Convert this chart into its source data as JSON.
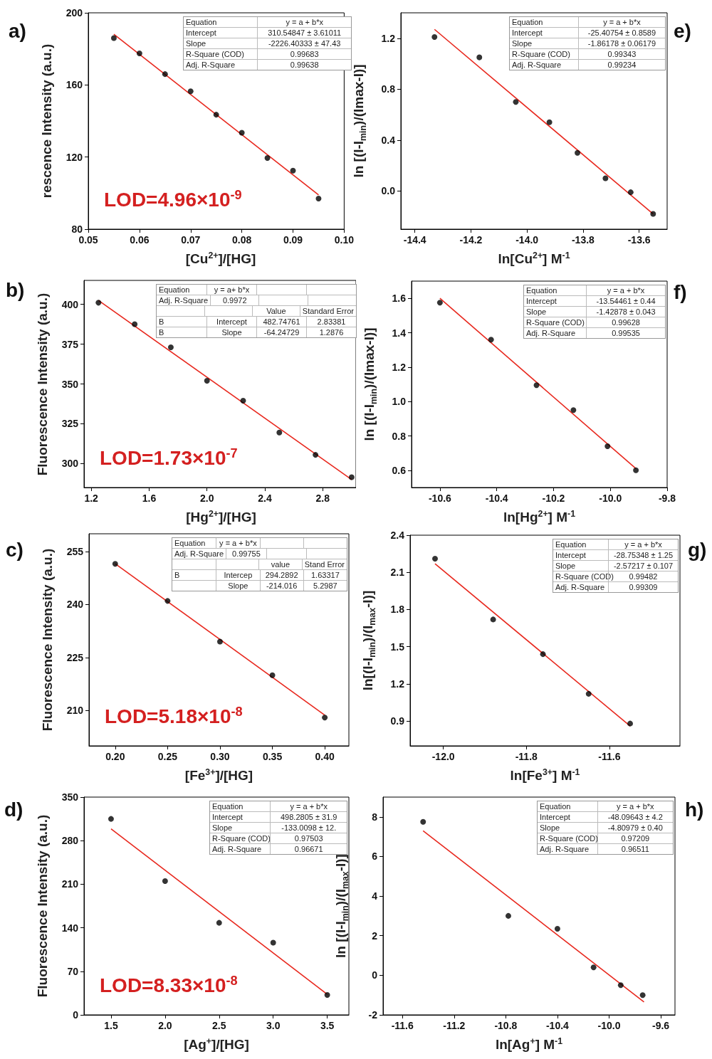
{
  "chart_data": [
    {
      "type": "scatter",
      "title": "a)",
      "subtitle": "LOD=4.96×10$^{-9}$",
      "xlabel": "[Cu$^{2+}$]/[HG]",
      "ylabel": "rescence Intensity (a.u.)",
      "xlim": [
        0.05,
        0.1
      ],
      "xticks": [
        0.05,
        0.06,
        0.07,
        0.08,
        0.09,
        {
          "value": 0.1,
          "label": "0.10"
        }
      ],
      "ylim": [
        80,
        200
      ],
      "yticks": [
        80,
        120,
        160,
        200
      ],
      "series": [
        {
          "type": "scatter",
          "marker": "circle",
          "color": "#000000",
          "x": [
            0.055,
            0.06,
            0.065,
            0.07,
            0.075,
            0.08,
            0.085,
            0.09,
            0.095
          ],
          "values": [
            186,
            177.5,
            166,
            156.5,
            143.5,
            133.5,
            119.5,
            112.5,
            97
          ]
        },
        {
          "type": "line",
          "marker": "none",
          "color": "#e8281e",
          "x": [
            0.055,
            0.095
          ],
          "values": [
            188.1,
            99.0
          ]
        }
      ],
      "annotations": [
        "Equation\ty = a + b*x",
        "Intercept\t310.54847 ± 3.61011",
        "Slope\t-2226.40333 ± 47.43",
        "R-Square (COD)\t0.99683",
        "Adj. R-Square\t0.99638"
      ]
    },
    {
      "type": "scatter",
      "title": "e)",
      "xlabel": "ln[Cu$^{2+}$] M$^{-1}$",
      "ylabel": "ln [(I-I$_{min}$)/(Imax-I)]",
      "xlim": [
        -14.45,
        -13.5
      ],
      "xticks": [
        -14.4,
        -14.2,
        {
          "value": -14,
          "label": "-14.0"
        },
        -13.8,
        -13.6
      ],
      "ylim": [
        -0.3,
        1.4
      ],
      "yticks": [
        {
          "value": 0,
          "label": "0.0"
        },
        0.4,
        0.8,
        1.2
      ],
      "series": [
        {
          "type": "scatter",
          "marker": "circle",
          "color": "#000000",
          "x": [
            -14.33,
            -14.17,
            -14.04,
            -13.92,
            -13.82,
            -13.72,
            -13.63,
            -13.55
          ],
          "values": [
            1.21,
            1.05,
            0.7,
            0.54,
            0.3,
            0.1,
            -0.01,
            -0.18
          ]
        },
        {
          "type": "line",
          "marker": "none",
          "color": "#e8281e",
          "x": [
            -14.33,
            -13.55
          ],
          "values": [
            1.27,
            -0.18
          ]
        }
      ],
      "annotations": [
        "Equation\ty = a + b*x",
        "Intercept\t-25.40754 ± 0.8589",
        "Slope\t-1.86178 ± 0.06179",
        "R-Square (COD)\t0.99343",
        "Adj. R-Square\t0.99234"
      ]
    },
    {
      "type": "scatter",
      "title": "b)",
      "subtitle": "LOD=1.73×10$^{-7}$",
      "xlabel": "[Hg$^{2+}$]/[HG]",
      "ylabel": "Fluorescence Intensity (a.u.)",
      "xlim": [
        1.15,
        3.03
      ],
      "xticks": [
        1.2,
        1.6,
        {
          "value": 2,
          "label": "2.0"
        },
        2.4,
        2.8
      ],
      "ylim": [
        285,
        415
      ],
      "yticks": [
        300,
        325,
        350,
        375,
        400
      ],
      "series": [
        {
          "type": "scatter",
          "marker": "circle",
          "color": "#000000",
          "x": [
            1.25,
            1.5,
            1.75,
            2,
            2.25,
            2.5,
            2.75,
            3
          ],
          "values": [
            401,
            387.5,
            373,
            352,
            339.5,
            319.5,
            305.5,
            291.5
          ]
        },
        {
          "type": "line",
          "marker": "none",
          "color": "#e8281e",
          "x": [
            1.25,
            3
          ],
          "values": [
            402.4,
            290.0
          ]
        }
      ],
      "annotations": [
        "Equation\ty = a+ b*x\t\t",
        "Adj. R-Square\t0.9972\t\t",
        "\t\tValue\tStandard Error",
        "B\tIntercept\t482.74761\t2.83381",
        "B\tSlope\t-64.24729\t1.2876"
      ]
    },
    {
      "type": "scatter",
      "title": "f)",
      "xlabel": "ln[Hg$^{2+}$] M$^{-1}$",
      "ylabel": "ln [(I-I$_{min}$)/(Imax-I)]",
      "xlim": [
        -10.7,
        -9.8
      ],
      "xticks": [
        -10.6,
        -10.4,
        -10.2,
        {
          "value": -10,
          "label": "-10.0"
        },
        -9.8
      ],
      "ylim": [
        0.5,
        1.7
      ],
      "yticks": [
        0.6,
        0.8,
        {
          "value": 1,
          "label": "1.0"
        },
        1.2,
        1.4,
        1.6
      ],
      "series": [
        {
          "type": "scatter",
          "marker": "circle",
          "color": "#000000",
          "x": [
            -10.6,
            -10.42,
            -10.26,
            -10.13,
            -10.01,
            -9.91
          ],
          "values": [
            1.575,
            1.36,
            1.095,
            0.95,
            0.74,
            0.6
          ]
        },
        {
          "type": "line",
          "marker": "none",
          "color": "#e8281e",
          "x": [
            -10.6,
            -9.91
          ],
          "values": [
            1.6,
            0.61
          ]
        }
      ],
      "annotations": [
        "Equation\ty = a + b*x",
        "Intercept\t-13.54461 ± 0.44",
        "Slope\t-1.42878 ± 0.043",
        "R-Square (COD)\t0.99628",
        "Adj. R-Square\t0.99535"
      ]
    },
    {
      "type": "scatter",
      "title": "c)",
      "subtitle": "LOD=5.18×10$^{-8}$",
      "xlabel": "[Fe$^{3+}$]/[HG]",
      "ylabel": "Fluorescence Intensity (a.u.)",
      "xlim": [
        0.175,
        0.423
      ],
      "xticks": [
        {
          "value": 0.2,
          "label": "0.20"
        },
        0.25,
        {
          "value": 0.3,
          "label": "0.30"
        },
        0.35,
        {
          "value": 0.4,
          "label": "0.40"
        }
      ],
      "ylim": [
        200,
        260
      ],
      "yticks": [
        210,
        225,
        240,
        255
      ],
      "series": [
        {
          "type": "scatter",
          "marker": "circle",
          "color": "#000000",
          "x": [
            0.2,
            0.25,
            0.3,
            0.35,
            0.4
          ],
          "values": [
            251.5,
            241,
            229.5,
            220,
            208
          ]
        },
        {
          "type": "line",
          "marker": "none",
          "color": "#e8281e",
          "x": [
            0.2,
            0.4
          ],
          "values": [
            251.5,
            208.7
          ]
        }
      ],
      "annotations": [
        "Equation\ty = a + b*x\t\t",
        "Adj. R-Square\t0.99755\t\t",
        "\t\tvalue\tStand Error",
        "B\tIntercep\t294.2892\t1.63317",
        "\tSlope\t-214.016\t5.2987"
      ]
    },
    {
      "type": "scatter",
      "title": "g)",
      "xlabel": "ln[Fe$^{3+}$] M$^{-1}$",
      "ylabel": "ln[(I-I$_{min}$)/(I$_{max}$-I)]",
      "xlim": [
        -12.08,
        -11.43
      ],
      "xticks": [
        {
          "value": -12,
          "label": "-12.0"
        },
        -11.8,
        -11.6
      ],
      "ylim": [
        0.7,
        2.4
      ],
      "yticks": [
        0.9,
        1.2,
        1.5,
        1.8,
        2.1,
        2.4
      ],
      "series": [
        {
          "type": "scatter",
          "marker": "circle",
          "color": "#000000",
          "x": [
            -12.02,
            -11.88,
            -11.76,
            -11.65,
            -11.55
          ],
          "values": [
            2.21,
            1.72,
            1.44,
            1.12,
            0.88
          ]
        },
        {
          "type": "line",
          "marker": "none",
          "color": "#e8281e",
          "x": [
            -12.02,
            -11.55
          ],
          "values": [
            2.17,
            0.86
          ]
        }
      ],
      "annotations": [
        "Equation\ty = a + b*x",
        "Intercept\t-28.75348 ± 1.25",
        "Slope\t-2.57217 ± 0.107",
        "R-Square (COD)\t0.99482",
        "Adj. R-Square\t0.99309"
      ]
    },
    {
      "type": "scatter",
      "title": "d)",
      "subtitle": "LOD=8.33×10$^{-8}$",
      "xlabel": "[Ag$^{+}$]/[HG]",
      "ylabel": "Fluorescence Intensity (a.u.)",
      "xlim": [
        1.25,
        3.7
      ],
      "xticks": [
        1.5,
        {
          "value": 2,
          "label": "2.0"
        },
        2.5,
        {
          "value": 3,
          "label": "3.0"
        },
        3.5
      ],
      "ylim": [
        0,
        350
      ],
      "yticks": [
        0,
        70,
        140,
        210,
        280,
        350
      ],
      "series": [
        {
          "type": "scatter",
          "marker": "circle",
          "color": "#000000",
          "x": [
            1.5,
            2,
            2.5,
            3,
            3.5
          ],
          "values": [
            315,
            215,
            148,
            116,
            32
          ]
        },
        {
          "type": "line",
          "marker": "none",
          "color": "#e8281e",
          "x": [
            1.5,
            3.5
          ],
          "values": [
            299,
            33
          ]
        }
      ],
      "annotations": [
        "Equation\ty = a + b*x",
        "Intercept\t498.2805 ± 31.9",
        "Slope\t-133.0098 ± 12.",
        "R-Square (COD)\t0.97503",
        "Adj. R-Square\t0.96671"
      ]
    },
    {
      "type": "scatter",
      "title": "h)",
      "xlabel": "ln[Ag$^{+}$] M$^{-1}$",
      "ylabel": "ln [(I-I$_{min}$)/(I$_{max}$-I)]",
      "xlim": [
        -11.75,
        -9.49
      ],
      "xticks": [
        -11.6,
        -11.2,
        -10.8,
        -10.4,
        {
          "value": -10,
          "label": "-10.0"
        },
        -9.6
      ],
      "ylim": [
        -2,
        9
      ],
      "yticks": [
        -2,
        0,
        2,
        4,
        6,
        8
      ],
      "series": [
        {
          "type": "scatter",
          "marker": "circle",
          "color": "#000000",
          "x": [
            -11.44,
            -10.78,
            -10.4,
            -10.12,
            -9.91,
            -9.74
          ],
          "values": [
            7.75,
            3.0,
            2.35,
            0.4,
            -0.5,
            -1.0
          ]
        },
        {
          "type": "line",
          "marker": "none",
          "color": "#e8281e",
          "x": [
            -11.44,
            -9.73
          ],
          "values": [
            7.3,
            -1.35
          ]
        }
      ],
      "annotations": [
        "Equation\ty = a + b*x",
        "Intercept\t-48.09643 ± 4.2",
        "Slope\t-4.80979 ± 0.40",
        "R-Square (COD)\t0.97209",
        "Adj. R-Square\t0.96511"
      ]
    }
  ]
}
